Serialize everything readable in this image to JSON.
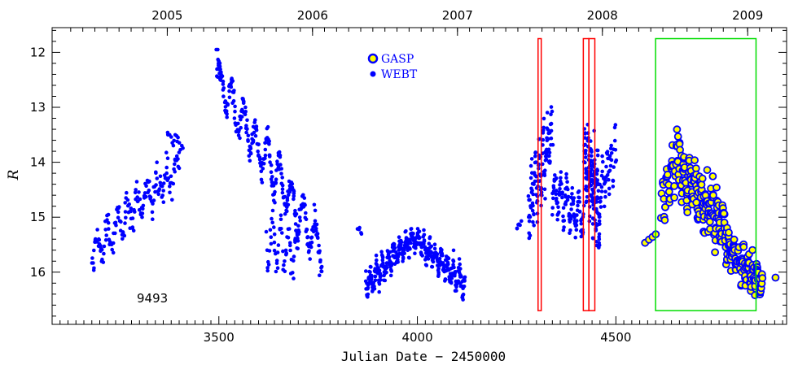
{
  "chart_data": {
    "type": "scatter",
    "xlabel": "Julian Date − 2450000",
    "ylabel": "R",
    "xlim": [
      3080,
      4930
    ],
    "ylim": [
      16.95,
      11.55
    ],
    "y_inverted": true,
    "x_ticks": [
      3500,
      4000,
      4500
    ],
    "y_ticks": [
      12,
      13,
      14,
      15,
      16
    ],
    "top_axis_ticks": [
      {
        "label": "2005",
        "x": 3370
      },
      {
        "label": "2006",
        "x": 3736
      },
      {
        "label": "2007",
        "x": 4101
      },
      {
        "label": "2008",
        "x": 4466
      },
      {
        "label": "2009",
        "x": 4832
      }
    ],
    "annotation": "9493",
    "legend": [
      {
        "label": "GASP",
        "fill": "#ffff00",
        "edge": "#0000ff"
      },
      {
        "label": "WEBT",
        "fill": "#0000ff",
        "edge": "#0000ff"
      }
    ],
    "highlight_boxes": [
      {
        "color": "#ff0000",
        "x0": 4304,
        "x1": 4312,
        "y0": 11.75,
        "y1": 16.7
      },
      {
        "color": "#ff0000",
        "x0": 4418,
        "x1": 4432,
        "y0": 11.75,
        "y1": 16.7
      },
      {
        "color": "#ff0000",
        "x0": 4432,
        "x1": 4447,
        "y0": 11.75,
        "y1": 16.7
      },
      {
        "color": "#00dd00",
        "x0": 4600,
        "x1": 4853,
        "y0": 11.75,
        "y1": 16.7
      }
    ],
    "series": [
      {
        "name": "WEBT",
        "color": "#0000ff",
        "segments": [
          {
            "x0": 3180,
            "x1": 3400,
            "y0": 15.6,
            "y1": 14.1,
            "n": 170,
            "spread": 0.45,
            "osc": 0.25,
            "per": 25
          },
          {
            "x0": 3370,
            "x1": 3410,
            "y0": 13.5,
            "y1": 13.7,
            "n": 15,
            "spread": 0.15,
            "osc": 0.1,
            "per": 20
          },
          {
            "x0": 3495,
            "x1": 3760,
            "y0": 12.5,
            "y1": 15.6,
            "n": 300,
            "spread": 0.35,
            "osc": 0.35,
            "per": 30
          },
          {
            "x0": 3495,
            "x1": 3505,
            "y0": 12.0,
            "y1": 12.5,
            "n": 10,
            "spread": 0.2,
            "osc": 0.0,
            "per": 10
          },
          {
            "x0": 3620,
            "x1": 3700,
            "y0": 15.4,
            "y1": 15.7,
            "n": 60,
            "spread": 0.35,
            "osc": 0.4,
            "per": 20
          },
          {
            "x0": 3850,
            "x1": 3860,
            "y0": 15.2,
            "y1": 15.3,
            "n": 5,
            "spread": 0.08,
            "osc": 0.0,
            "per": 10
          },
          {
            "x0": 3870,
            "x1": 3990,
            "y0": 16.2,
            "y1": 15.4,
            "n": 200,
            "spread": 0.3,
            "osc": 0.15,
            "per": 15
          },
          {
            "x0": 3990,
            "x1": 4120,
            "y0": 15.4,
            "y1": 16.2,
            "n": 200,
            "spread": 0.3,
            "osc": 0.15,
            "per": 15
          },
          {
            "x0": 4250,
            "x1": 4262,
            "y0": 15.2,
            "y1": 15.1,
            "n": 6,
            "spread": 0.08,
            "osc": 0.0,
            "per": 10
          },
          {
            "x0": 4280,
            "x1": 4340,
            "y0": 14.8,
            "y1": 13.5,
            "n": 120,
            "spread": 0.7,
            "osc": 0.4,
            "per": 10
          },
          {
            "x0": 4340,
            "x1": 4420,
            "y0": 14.5,
            "y1": 15.0,
            "n": 110,
            "spread": 0.35,
            "osc": 0.3,
            "per": 15
          },
          {
            "x0": 4420,
            "x1": 4460,
            "y0": 14.0,
            "y1": 14.8,
            "n": 150,
            "spread": 0.9,
            "osc": 0.4,
            "per": 8
          },
          {
            "x0": 4460,
            "x1": 4500,
            "y0": 14.4,
            "y1": 13.8,
            "n": 50,
            "spread": 0.6,
            "osc": 0.3,
            "per": 10
          }
        ]
      },
      {
        "name": "GASP",
        "color": "#ffff00",
        "edge": "#0000ff",
        "segments": [
          {
            "x0": 4575,
            "x1": 4600,
            "y0": 15.5,
            "y1": 15.3,
            "n": 4,
            "spread": 0.1,
            "osc": 0.0,
            "per": 10
          },
          {
            "x0": 4615,
            "x1": 4660,
            "y0": 14.8,
            "y1": 13.9,
            "n": 40,
            "spread": 0.4,
            "osc": 0.3,
            "per": 12
          },
          {
            "x0": 4655,
            "x1": 4665,
            "y0": 13.5,
            "y1": 13.8,
            "n": 6,
            "spread": 0.2,
            "osc": 0.0,
            "per": 10
          },
          {
            "x0": 4665,
            "x1": 4780,
            "y0": 14.2,
            "y1": 15.2,
            "n": 160,
            "spread": 0.55,
            "osc": 0.3,
            "per": 14
          },
          {
            "x0": 4780,
            "x1": 4870,
            "y0": 15.6,
            "y1": 16.2,
            "n": 120,
            "spread": 0.35,
            "osc": 0.2,
            "per": 12
          },
          {
            "x0": 4900,
            "x1": 4905,
            "y0": 16.1,
            "y1": 16.1,
            "n": 1,
            "spread": 0.0,
            "osc": 0.0,
            "per": 10
          }
        ]
      }
    ]
  }
}
